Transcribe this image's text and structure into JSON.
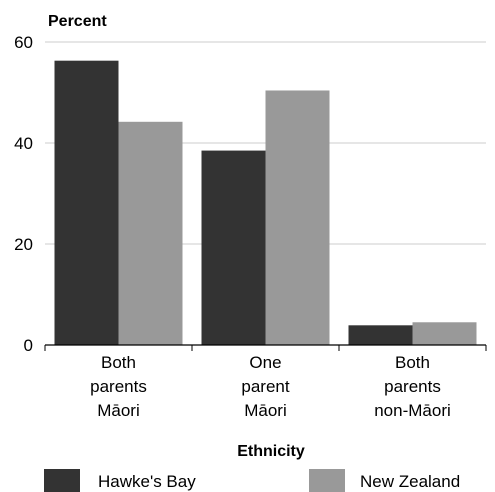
{
  "chart_data": {
    "type": "bar",
    "ylabel": "Percent",
    "xlabel": "Ethnicity",
    "ylim": [
      0,
      60
    ],
    "yticks": [
      0,
      20,
      40,
      60
    ],
    "grid": true,
    "legend_position": "bottom",
    "categories": [
      [
        "Both",
        "parents",
        "Māori"
      ],
      [
        "One",
        "parent",
        "Māori"
      ],
      [
        "Both",
        "parents",
        "non-Māori"
      ]
    ],
    "series": [
      {
        "name": "Hawke's Bay",
        "color": "#333333",
        "values": [
          56.3,
          38.5,
          3.9
        ]
      },
      {
        "name": "New Zealand",
        "color": "#999999",
        "values": [
          44.2,
          50.4,
          4.5
        ]
      }
    ]
  }
}
